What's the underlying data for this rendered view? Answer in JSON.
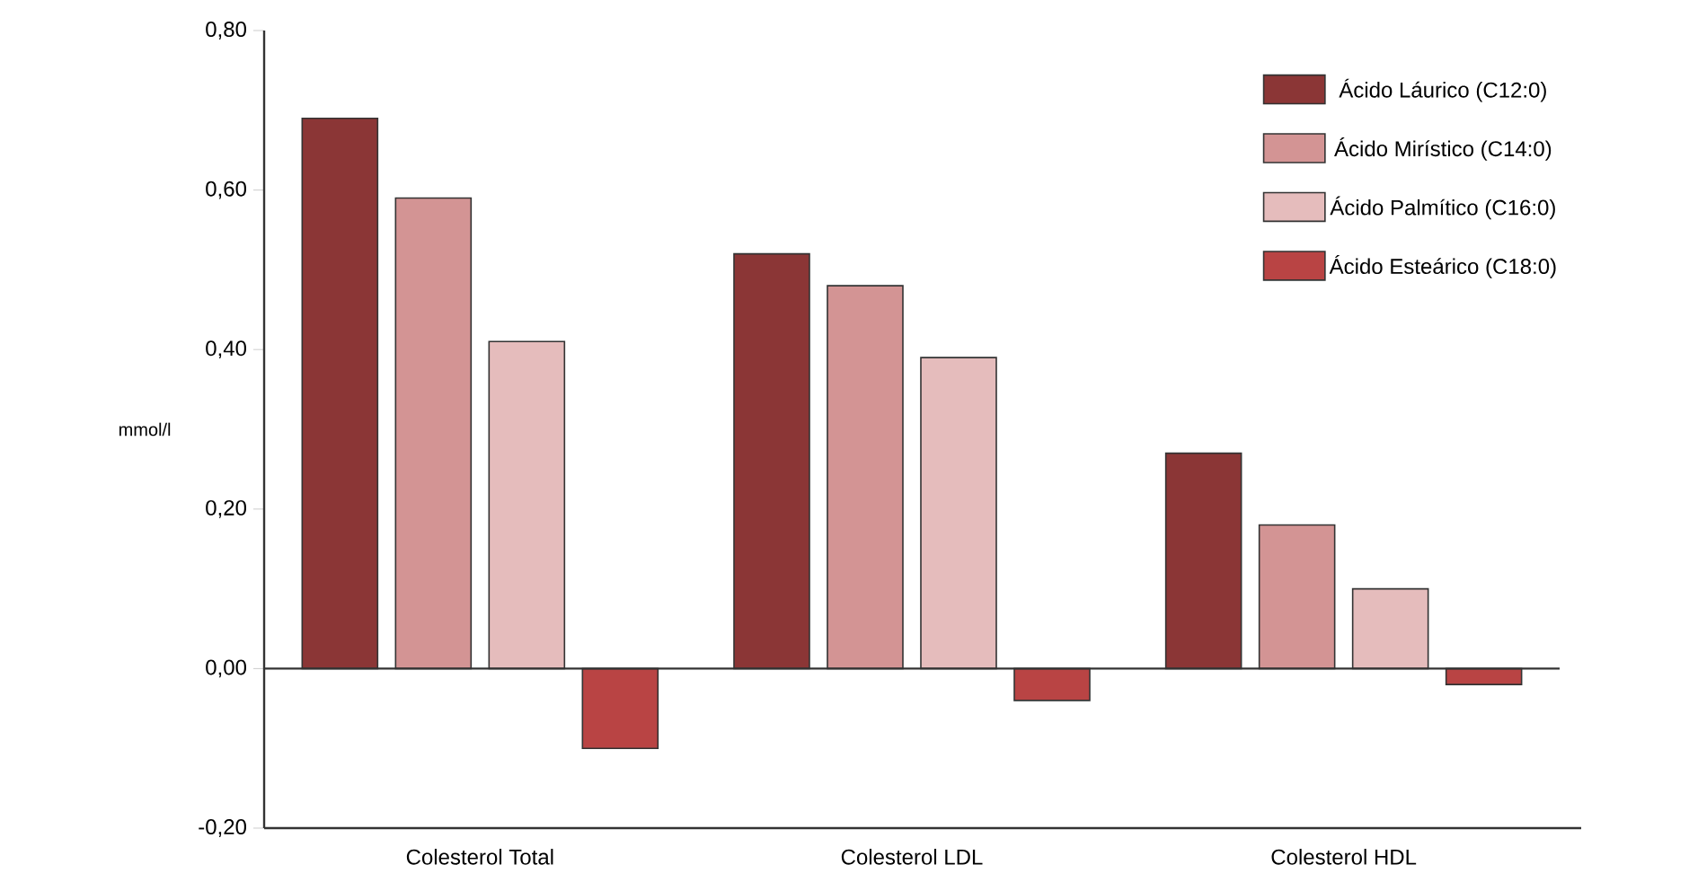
{
  "chart_data": {
    "type": "bar",
    "ylabel": "mmol/l",
    "categories": [
      "Colesterol Total",
      "Colesterol LDL",
      "Colesterol HDL"
    ],
    "series": [
      {
        "name": "Ácido Láurico (C12:0)",
        "color": "#8b3636",
        "values": [
          0.69,
          0.52,
          0.27
        ]
      },
      {
        "name": "Ácido Mirístico (C14:0)",
        "color": "#d39494",
        "values": [
          0.59,
          0.48,
          0.18
        ]
      },
      {
        "name": "Ácido Palmítico (C16:0)",
        "color": "#e5bcbc",
        "values": [
          0.41,
          0.39,
          0.1
        ]
      },
      {
        "name": "Ácido Esteárico (C18:0)",
        "color": "#b94444",
        "values": [
          -0.1,
          -0.04,
          -0.02
        ]
      }
    ],
    "ylim": [
      -0.2,
      0.8
    ],
    "yticks": [
      {
        "value": -0.2,
        "label": "-0,20"
      },
      {
        "value": 0,
        "label": "0,00"
      },
      {
        "value": 0.2,
        "label": "0,20"
      },
      {
        "value": 0.4,
        "label": "0,40"
      },
      {
        "value": 0.6,
        "label": "0,60"
      },
      {
        "value": 0.8,
        "label": "0,80"
      }
    ],
    "legend": "top right"
  }
}
